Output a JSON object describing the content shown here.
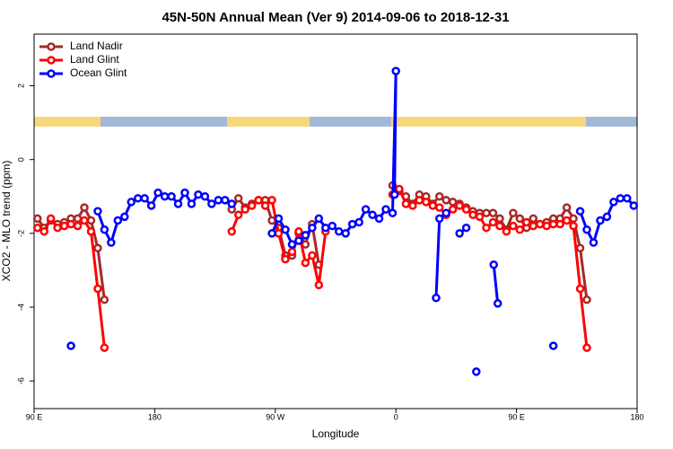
{
  "chart_data": {
    "type": "line",
    "title": "45N-50N Annual Mean (Ver 9)   2014-09-06 to 2018-12-31",
    "x_label": "Longitude",
    "y_label": "XCO2 - MLO trend (ppm)",
    "xlim": [
      -270,
      180
    ],
    "xticks": [
      {
        "value": -270,
        "label": "90 E"
      },
      {
        "value": -180,
        "label": "180"
      },
      {
        "value": -90,
        "label": "90 W"
      },
      0,
      {
        "value": 90,
        "label": "90 E"
      },
      180
    ],
    "ylim": [
      -6.75,
      3.4
    ],
    "yticks": [
      -6,
      -4,
      -2,
      0,
      2
    ],
    "legend": "top-left",
    "series": [
      {
        "name": "Land Nadir",
        "color": "#a52a2a",
        "x": [
          -267.5,
          -262.5,
          -257.5,
          -252.5,
          -247.5,
          -242.5,
          -237.5,
          -232.5,
          -227.5,
          -222.5,
          -217.5,
          null,
          -122.5,
          -117.5,
          -112.5,
          -107.5,
          -102.5,
          -97.5,
          -92.5,
          -87.5,
          -82.5,
          -77.5,
          -72.5,
          -67.5,
          -62.5,
          -57.5,
          null,
          -2.5,
          2.5,
          7.5,
          12.5,
          17.5,
          22.5,
          27.5,
          32.5,
          37.5,
          42.5,
          47.5,
          52.5,
          57.5,
          62.5,
          67.5,
          72.5,
          77.5,
          82.5,
          87.5,
          92.5,
          97.5,
          102.5,
          107.5,
          112.5,
          117.5,
          122.5,
          127.5,
          132.5,
          137.5,
          142.5
        ],
        "values": [
          -1.6,
          -1.85,
          -1.65,
          -1.75,
          -1.7,
          -1.6,
          -1.6,
          -1.3,
          -1.65,
          -2.4,
          -3.8,
          null,
          -1.35,
          -1.05,
          -1.3,
          -1.2,
          -1.1,
          -1.1,
          -1.65,
          -1.85,
          -2.6,
          -2.6,
          -2.0,
          -2.3,
          -1.75,
          -2.85,
          null,
          -0.7,
          -0.85,
          -1.0,
          -1.2,
          -0.95,
          -1.0,
          -1.2,
          -1.0,
          -1.1,
          -1.15,
          -1.2,
          -1.3,
          -1.4,
          -1.45,
          -1.45,
          -1.45,
          -1.6,
          -1.9,
          -1.45,
          -1.6,
          -1.85,
          -1.6,
          -1.75,
          -1.7,
          -1.6,
          -1.6,
          -1.3,
          -1.6,
          -2.4,
          -3.8
        ]
      },
      {
        "name": "Land Glint",
        "color": "#ff0000",
        "x": [
          -267.5,
          -262.5,
          -257.5,
          -252.5,
          -247.5,
          -242.5,
          -237.5,
          -232.5,
          -227.5,
          -222.5,
          -217.5,
          null,
          -122.5,
          -117.5,
          -112.5,
          -107.5,
          -102.5,
          -97.5,
          -92.5,
          -87.5,
          -82.5,
          -77.5,
          -72.5,
          -67.5,
          -62.5,
          -57.5,
          -52.5,
          null,
          -2.5,
          2.5,
          7.5,
          12.5,
          17.5,
          22.5,
          27.5,
          32.5,
          37.5,
          42.5,
          47.5,
          52.5,
          57.5,
          62.5,
          67.5,
          72.5,
          77.5,
          82.5,
          87.5,
          92.5,
          97.5,
          102.5,
          107.5,
          112.5,
          117.5,
          122.5,
          127.5,
          132.5,
          137.5,
          142.5
        ],
        "values": [
          -1.85,
          -1.95,
          -1.6,
          -1.85,
          -1.8,
          -1.75,
          -1.8,
          -1.65,
          -1.95,
          -3.5,
          -5.1,
          null,
          -1.95,
          -1.5,
          -1.35,
          -1.25,
          -1.1,
          -1.25,
          -1.1,
          -2.0,
          -2.7,
          -2.5,
          -1.95,
          -2.8,
          -2.6,
          -3.4,
          -1.95,
          null,
          -0.95,
          -0.8,
          -1.2,
          -1.25,
          -1.1,
          -1.15,
          -1.25,
          -1.3,
          -1.5,
          -1.35,
          -1.25,
          -1.35,
          -1.5,
          -1.55,
          -1.85,
          -1.7,
          -1.8,
          -1.95,
          -1.8,
          -1.9,
          -1.7,
          -1.8,
          -1.75,
          -1.8,
          -1.75,
          -1.75,
          -1.65,
          -1.8,
          -3.5,
          -5.1
        ]
      },
      {
        "name": "Ocean Glint",
        "color": "#0000ff",
        "x": [
          -242.5,
          null,
          -222.5,
          -217.5,
          -212.5,
          -207.5,
          -202.5,
          -197.5,
          -192.5,
          -187.5,
          -182.5,
          -177.5,
          -172.5,
          -167.5,
          -162.5,
          -157.5,
          -152.5,
          -147.5,
          -142.5,
          -137.5,
          -132.5,
          -127.5,
          -122.5,
          null,
          -92.5,
          -87.5,
          -82.5,
          -77.5,
          -72.5,
          -67.5,
          -62.5,
          -57.5,
          -52.5,
          -47.5,
          -42.5,
          -37.5,
          -32.5,
          -27.5,
          -22.5,
          -17.5,
          -12.5,
          -7.5,
          -2.5,
          0,
          -1,
          null,
          30,
          32.5,
          37.5,
          null,
          47.5,
          52.5,
          null,
          60,
          null,
          73,
          76,
          null,
          117.5,
          null,
          137.5,
          142.5,
          147.5,
          152.5,
          157.5,
          162.5,
          167.5,
          172.5,
          177.5
        ],
        "values": [
          -5.05,
          null,
          -1.4,
          -1.9,
          -2.25,
          -1.65,
          -1.55,
          -1.15,
          -1.05,
          -1.05,
          -1.25,
          -0.9,
          -1.0,
          -1.0,
          -1.2,
          -0.9,
          -1.2,
          -0.95,
          -1.0,
          -1.2,
          -1.1,
          -1.1,
          -1.2,
          null,
          -2.0,
          -1.6,
          -1.9,
          -2.3,
          -2.2,
          -2.05,
          -1.85,
          -1.6,
          -1.85,
          -1.8,
          -1.95,
          -2.0,
          -1.75,
          -1.7,
          -1.35,
          -1.5,
          -1.6,
          -1.35,
          -1.45,
          2.4,
          -0.95,
          null,
          -3.75,
          -1.6,
          -1.45,
          null,
          -2.0,
          -1.85,
          null,
          -5.75,
          null,
          -2.85,
          -3.9,
          null,
          -5.05,
          null,
          -1.4,
          -1.9,
          -2.25,
          -1.65,
          -1.55,
          -1.15,
          -1.05,
          -1.05,
          -1.25
        ]
      }
    ]
  }
}
